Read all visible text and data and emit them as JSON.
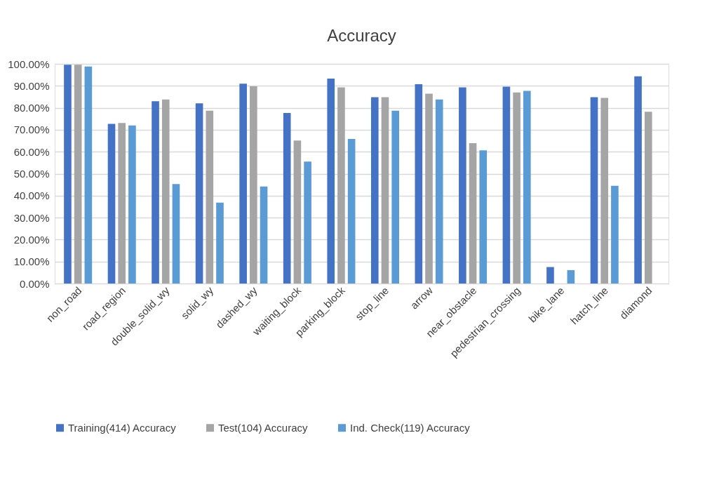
{
  "chart_data": {
    "type": "bar",
    "title": "Accuracy",
    "categories": [
      "non_road",
      "road_region",
      "double_solid_wy",
      "solid_wy",
      "dashed_wy",
      "waiting_block",
      "parking_block",
      "stop_line",
      "arrow",
      "near_obstacle",
      "pedestrian_crossing",
      "bike_lane",
      "hatch_line",
      "diamond"
    ],
    "series": [
      {
        "name": "Training(414) Accuracy",
        "color": "#4472c4",
        "values": [
          99.6,
          72.7,
          83.0,
          82.0,
          91.0,
          77.6,
          93.3,
          84.8,
          90.7,
          89.3,
          89.6,
          7.5,
          84.8,
          94.3
        ]
      },
      {
        "name": "Test(104) Accuracy",
        "color": "#a5a5a5",
        "values": [
          99.6,
          73.1,
          83.8,
          78.7,
          89.8,
          65.1,
          89.3,
          84.8,
          86.4,
          63.9,
          87.0,
          null,
          84.5,
          78.2
        ]
      },
      {
        "name": "Ind. Check(119) Accuracy",
        "color": "#5b9bd5",
        "values": [
          98.8,
          72.0,
          45.3,
          36.8,
          44.2,
          55.5,
          65.8,
          78.7,
          83.8,
          60.6,
          87.7,
          6.1,
          44.5,
          null
        ]
      }
    ],
    "ylim": [
      0,
      100
    ],
    "yticks": [
      {
        "value": 0,
        "label": "0.00%"
      },
      {
        "value": 10,
        "label": "10.00%"
      },
      {
        "value": 20,
        "label": "20.00%"
      },
      {
        "value": 30,
        "label": "30.00%"
      },
      {
        "value": 40,
        "label": "40.00%"
      },
      {
        "value": 50,
        "label": "50.00%"
      },
      {
        "value": 60,
        "label": "60.00%"
      },
      {
        "value": 70,
        "label": "70.00%"
      },
      {
        "value": 80,
        "label": "80.00%"
      },
      {
        "value": 90,
        "label": "90.00%"
      },
      {
        "value": 100,
        "label": "100.00%"
      }
    ],
    "grid": "y",
    "legend": "bottom"
  }
}
